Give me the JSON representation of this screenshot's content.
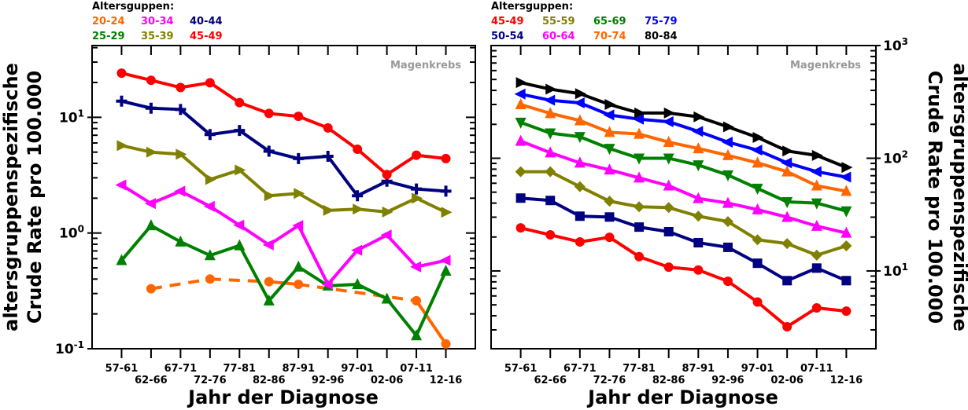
{
  "chart_data": [
    {
      "type": "line",
      "title": "",
      "annotation": "Magenkrebs",
      "legend_title": "Altersguppen:",
      "legend_placement": "top-left, outside",
      "xlabel": "Jahr der Diagnose",
      "ylabel_lines": [
        "altersgruppenspezifische",
        "Crude Rate pro 100.000"
      ],
      "yscale": "log",
      "ylim": [
        0.1,
        41.7
      ],
      "yticks": [
        {
          "value": 0.1,
          "base": "10",
          "exp": "-1"
        },
        {
          "value": 1,
          "base": "10",
          "exp": "0"
        },
        {
          "value": 10,
          "base": "10",
          "exp": "1"
        }
      ],
      "categories": [
        "57-61",
        "62-66",
        "67-71",
        "72-76",
        "77-81",
        "82-86",
        "87-91",
        "92-96",
        "97-01",
        "02-06",
        "07-11",
        "12-16"
      ],
      "series": [
        {
          "name": "20-24",
          "color": "#ff6600",
          "marker": "circle",
          "dashed_gaps": true,
          "values": [
            null,
            0.33,
            null,
            0.4,
            null,
            0.38,
            0.36,
            null,
            null,
            null,
            0.26,
            0.11
          ]
        },
        {
          "name": "25-29",
          "color": "#008000",
          "marker": "triangle-up",
          "values": [
            0.58,
            1.16,
            0.84,
            0.64,
            0.78,
            0.26,
            0.51,
            0.35,
            0.36,
            0.27,
            0.13,
            0.47
          ]
        },
        {
          "name": "30-34",
          "color": "#ff00ff",
          "marker": "triangle-left",
          "values": [
            2.6,
            1.8,
            2.3,
            1.7,
            1.17,
            0.79,
            1.16,
            0.36,
            0.71,
            0.96,
            0.51,
            0.58
          ]
        },
        {
          "name": "35-39",
          "color": "#808000",
          "marker": "triangle-right",
          "values": [
            5.7,
            5.0,
            4.8,
            2.9,
            3.5,
            2.1,
            2.2,
            1.57,
            1.61,
            1.52,
            2.0,
            1.51
          ]
        },
        {
          "name": "40-44",
          "color": "#000080",
          "marker": "plus",
          "values": [
            13.8,
            12.0,
            11.7,
            7.1,
            7.7,
            5.1,
            4.4,
            4.6,
            2.1,
            2.8,
            2.4,
            2.3
          ]
        },
        {
          "name": "45-49",
          "color": "#ff0000",
          "marker": "circle",
          "values": [
            24.1,
            20.9,
            18.1,
            19.9,
            13.4,
            10.8,
            10.2,
            8.1,
            5.3,
            3.2,
            4.7,
            4.4
          ]
        }
      ],
      "legend_rows": [
        [
          "20-24",
          "30-34",
          "40-44"
        ],
        [
          "25-29",
          "35-39",
          "45-49"
        ]
      ]
    },
    {
      "type": "line",
      "title": "",
      "annotation": "Magenkrebs",
      "legend_title": "Altersguppen:",
      "legend_placement": "top-left, outside",
      "xlabel": "Jahr der Diagnose",
      "ylabel_lines": [
        "altersgruppenspezifische",
        "Crude Rate pro 100.000"
      ],
      "yaxis_side": "right",
      "yscale": "log",
      "ylim": [
        2.04,
        1000
      ],
      "yticks": [
        {
          "value": 10,
          "base": "10",
          "exp": "1"
        },
        {
          "value": 100,
          "base": "10",
          "exp": "2"
        },
        {
          "value": 1000,
          "base": "10",
          "exp": "3"
        }
      ],
      "categories": [
        "57-61",
        "62-66",
        "67-71",
        "72-76",
        "77-81",
        "82-86",
        "87-91",
        "92-96",
        "97-01",
        "02-06",
        "07-11",
        "12-16"
      ],
      "series": [
        {
          "name": "45-49",
          "color": "#ff0000",
          "marker": "circle",
          "values": [
            24.1,
            20.9,
            18.1,
            19.9,
            13.4,
            10.8,
            10.2,
            8.1,
            5.3,
            3.2,
            4.7,
            4.4
          ]
        },
        {
          "name": "50-54",
          "color": "#000080",
          "marker": "square",
          "values": [
            44.3,
            42.2,
            30.6,
            30.1,
            24.5,
            22.3,
            17.8,
            16.2,
            11.7,
            8.2,
            10.6,
            8.2
          ]
        },
        {
          "name": "55-59",
          "color": "#808000",
          "marker": "diamond",
          "values": [
            76,
            76,
            56,
            41.6,
            37.1,
            36.5,
            30.6,
            27.4,
            18.9,
            17.5,
            13.8,
            16.7
          ]
        },
        {
          "name": "60-64",
          "color": "#ff00ff",
          "marker": "triangle-up",
          "values": [
            142,
            112,
            91,
            79,
            67,
            57,
            44,
            40,
            35,
            30,
            25,
            21.7
          ]
        },
        {
          "name": "65-69",
          "color": "#008000",
          "marker": "triangle-down",
          "values": [
            208,
            167,
            155,
            122,
            100,
            100,
            87,
            71,
            54,
            41,
            40,
            34
          ]
        },
        {
          "name": "70-74",
          "color": "#ff6600",
          "marker": "triangle-up",
          "values": [
            300,
            250,
            216,
            170,
            164,
            139,
            122,
            106,
            91,
            76,
            57,
            51
          ]
        },
        {
          "name": "75-79",
          "color": "#0000ff",
          "marker": "triangle-left",
          "values": [
            371,
            327,
            310,
            242,
            222,
            211,
            173,
            139,
            118,
            91,
            76,
            68
          ]
        },
        {
          "name": "80-84",
          "color": "#000000",
          "marker": "triangle-right",
          "values": [
            469,
            410,
            374,
            300,
            252,
            252,
            233,
            190,
            153,
            116,
            106,
            83
          ]
        }
      ],
      "legend_rows": [
        [
          "45-49",
          "55-59",
          "65-69",
          "75-79"
        ],
        [
          "50-54",
          "60-64",
          "70-74",
          "80-84"
        ]
      ]
    }
  ]
}
